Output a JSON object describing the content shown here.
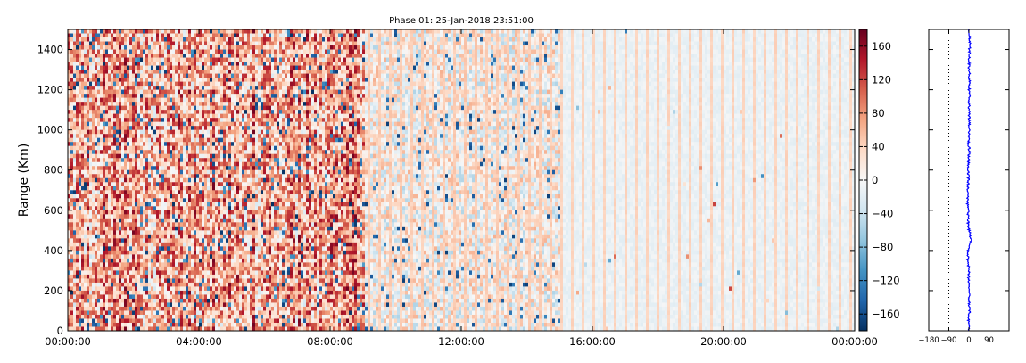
{
  "chart_data": [
    {
      "type": "heatmap",
      "title": "Phase 01: 25-Jan-2018 23:51:00",
      "xlabel": "",
      "ylabel": "Range (Km)",
      "x_tick_labels": [
        "00:00:00",
        "04:00:00",
        "08:00:00",
        "12:00:00",
        "16:00:00",
        "20:00:00",
        "00:00:00"
      ],
      "x_range": [
        "00:00:00",
        "24:00:00"
      ],
      "y_ticks": [
        0,
        200,
        400,
        600,
        800,
        1000,
        1200,
        1400
      ],
      "ylim": [
        0,
        1500
      ],
      "colormap": "RdBu_r",
      "colorbar": {
        "ticks": [
          160,
          120,
          80,
          40,
          0,
          -40,
          -80,
          -120,
          -160
        ],
        "range": [
          -180,
          180
        ]
      },
      "description_of_values": {
        "00:00-09:00": "mostly positive, strongly noisy (approx. 40 to 180, scattered negatives)",
        "09:00-15:00": "mixed noisy values around -40 to 80",
        "15:00-24:00": "near zero, slightly negative (approx. -20 to 0) with periodic vertical stripes near +40"
      },
      "grid": false
    },
    {
      "type": "line",
      "x_ticks": [
        -180,
        -90,
        0,
        90
      ],
      "x_tick_labels": [
        "−180",
        "−90",
        "0",
        "90"
      ],
      "xlim": [
        -180,
        180
      ],
      "ylim": [
        0,
        1500
      ],
      "reference_lines": [
        -90,
        90
      ],
      "series": [
        {
          "color": "#0000ff",
          "profile": [
            [
              0,
              2
            ],
            [
              50,
              -3
            ],
            [
              100,
              4
            ],
            [
              150,
              0
            ],
            [
              200,
              3
            ],
            [
              250,
              -2
            ],
            [
              300,
              1
            ],
            [
              350,
              -5
            ],
            [
              400,
              -3
            ],
            [
              450,
              8
            ],
            [
              480,
              6
            ],
            [
              520,
              -4
            ],
            [
              560,
              -2
            ],
            [
              600,
              -5
            ],
            [
              650,
              -6
            ],
            [
              700,
              -4
            ],
            [
              750,
              -2
            ],
            [
              800,
              -3
            ],
            [
              850,
              -1
            ],
            [
              900,
              1
            ],
            [
              950,
              -2
            ],
            [
              1000,
              1
            ],
            [
              1050,
              2
            ],
            [
              1100,
              0
            ],
            [
              1150,
              2
            ],
            [
              1200,
              1
            ],
            [
              1250,
              3
            ],
            [
              1300,
              1
            ],
            [
              1350,
              2
            ],
            [
              1400,
              3
            ],
            [
              1450,
              4
            ],
            [
              1500,
              2
            ]
          ]
        }
      ]
    }
  ]
}
